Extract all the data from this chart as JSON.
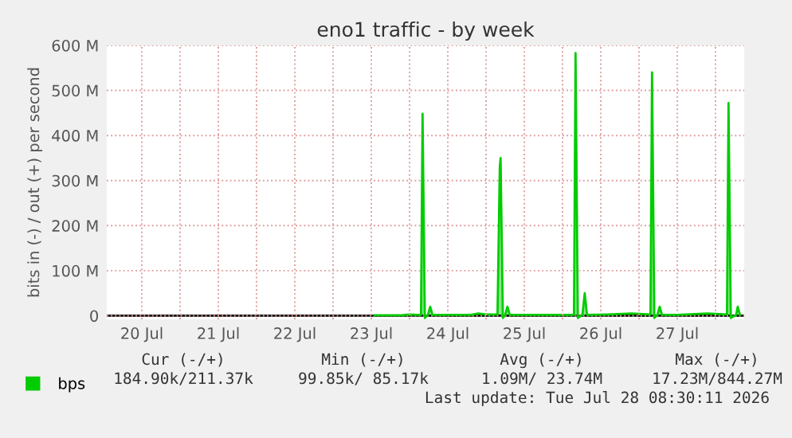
{
  "chart_data": {
    "type": "area",
    "title": "eno1 traffic - by week",
    "ylabel": "bits in (-) / out (+) per second",
    "xlim": [
      "2026-07-20T01:00",
      "2026-07-28T09:00"
    ],
    "xticks": [
      {
        "value": "2026-07-20T12:00",
        "label": "20 Jul"
      },
      {
        "value": "2026-07-21T12:00",
        "label": "21 Jul"
      },
      {
        "value": "2026-07-22T12:00",
        "label": "22 Jul"
      },
      {
        "value": "2026-07-23T12:00",
        "label": "23 Jul"
      },
      {
        "value": "2026-07-24T12:00",
        "label": "24 Jul"
      },
      {
        "value": "2026-07-25T12:00",
        "label": "25 Jul"
      },
      {
        "value": "2026-07-26T12:00",
        "label": "26 Jul"
      },
      {
        "value": "2026-07-27T12:00",
        "label": "27 Jul"
      }
    ],
    "ylim": [
      -8,
      600
    ],
    "yticks": [
      {
        "value": 0,
        "label": "0"
      },
      {
        "value": 100,
        "label": "100 M"
      },
      {
        "value": 200,
        "label": "200 M"
      },
      {
        "value": 300,
        "label": "300 M"
      },
      {
        "value": 400,
        "label": "400 M"
      },
      {
        "value": 500,
        "label": "500 M"
      },
      {
        "value": 600,
        "label": "600 M"
      }
    ],
    "grid": true,
    "legend": "bottom left",
    "series": [
      {
        "name": "bps",
        "color": "#00cc00",
        "x": [
          "2026-07-23T13:00",
          "2026-07-23T21:35",
          "2026-07-24T00:00",
          "2026-07-24T02:24",
          "2026-07-24T03:36",
          "2026-07-24T04:05",
          "2026-07-24T04:48",
          "2026-07-24T05:46",
          "2026-07-24T06:29",
          "2026-07-24T07:12",
          "2026-07-24T12:00",
          "2026-07-24T19:12",
          "2026-07-24T21:36",
          "2026-07-25T00:00",
          "2026-07-25T03:36",
          "2026-07-25T04:19",
          "2026-07-25T04:34",
          "2026-07-25T05:17",
          "2026-07-25T06:00",
          "2026-07-25T06:43",
          "2026-07-25T07:26",
          "2026-07-25T12:00",
          "2026-07-26T00:00",
          "2026-07-26T03:36",
          "2026-07-26T04:05",
          "2026-07-26T04:48",
          "2026-07-26T06:14",
          "2026-07-26T06:58",
          "2026-07-26T07:41",
          "2026-07-26T14:24",
          "2026-07-26T21:36",
          "2026-07-27T00:00",
          "2026-07-27T03:36",
          "2026-07-27T04:05",
          "2026-07-27T04:48",
          "2026-07-27T05:46",
          "2026-07-27T06:29",
          "2026-07-27T07:12",
          "2026-07-27T12:00",
          "2026-07-27T21:36",
          "2026-07-28T03:36",
          "2026-07-28T04:05",
          "2026-07-28T04:48",
          "2026-07-28T06:29",
          "2026-07-28T06:58",
          "2026-07-28T07:41"
        ],
        "values": [
          1,
          1,
          3,
          2,
          2,
          448,
          -5,
          2,
          20,
          2,
          2,
          2,
          5,
          3,
          3,
          330,
          350,
          -5,
          2,
          20,
          2,
          2,
          2,
          2,
          583,
          -5,
          2,
          50,
          2,
          3,
          5,
          4,
          3,
          540,
          -5,
          2,
          20,
          2,
          2,
          5,
          3,
          472,
          -5,
          2,
          20,
          2
        ]
      }
    ],
    "annotations": [
      "Cur (-/+)",
      "Min (-/+)",
      "Avg (-/+)",
      "Max (-/+)",
      "184.90k/211.37k",
      "99.85k/ 85.17k",
      "1.09M/ 23.74M",
      "17.23M/844.27M",
      "Last update: Tue Jul 28 08:30:11 2026"
    ]
  }
}
